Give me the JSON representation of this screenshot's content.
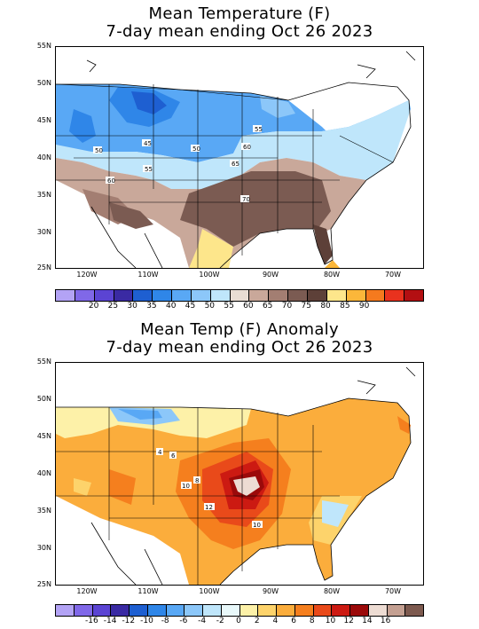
{
  "panel1": {
    "title_line1": "Mean Temperature (F)",
    "title_line2": "7-day mean ending Oct 26 2023",
    "lat_labels": [
      "55N",
      "50N",
      "45N",
      "40N",
      "35N",
      "30N",
      "25N"
    ],
    "lon_labels": [
      "120W",
      "110W",
      "100W",
      "90W",
      "80W",
      "70W"
    ],
    "contour_labels": [
      "45",
      "50",
      "50",
      "55",
      "55",
      "60",
      "60",
      "65",
      "70"
    ],
    "colorbar": {
      "colors": [
        "#b3a3f5",
        "#8068e8",
        "#5b44d3",
        "#3a2aa3",
        "#1e5fd1",
        "#2f86e8",
        "#59a8f5",
        "#8cc7f9",
        "#bfe6fb",
        "#e9ddd3",
        "#c9a89a",
        "#a37e72",
        "#7b5b52",
        "#5d4038",
        "#fde68b",
        "#fbb73a",
        "#f57a1e",
        "#e9321e",
        "#b30f12"
      ],
      "labels": [
        "20",
        "25",
        "30",
        "35",
        "40",
        "45",
        "50",
        "55",
        "60",
        "65",
        "70",
        "75",
        "80",
        "85",
        "90"
      ]
    }
  },
  "panel2": {
    "title_line1": "Mean Temp (F) Anomaly",
    "title_line2": "7-day mean ending Oct 26 2023",
    "lat_labels": [
      "55N",
      "50N",
      "45N",
      "40N",
      "35N",
      "30N",
      "25N"
    ],
    "lon_labels": [
      "120W",
      "110W",
      "100W",
      "90W",
      "80W",
      "70W"
    ],
    "contour_labels": [
      "4",
      "6",
      "10",
      "8",
      "12",
      "10"
    ],
    "colorbar": {
      "colors": [
        "#b3a3f5",
        "#8068e8",
        "#5b44d3",
        "#3a2aa3",
        "#1e5fd1",
        "#2f86e8",
        "#59a8f5",
        "#8cc7f9",
        "#bfe6fb",
        "#e8f8fa",
        "#fdf1a8",
        "#fdd36b",
        "#fbad3c",
        "#f57f1e",
        "#e94a1a",
        "#cc1a12",
        "#9b0a0a",
        "#eddcd3",
        "#c4a092",
        "#7d5a4f"
      ],
      "labels": [
        "-16",
        "-14",
        "-12",
        "-10",
        "-8",
        "-6",
        "-4",
        "-2",
        "0",
        "2",
        "4",
        "6",
        "8",
        "10",
        "12",
        "14",
        "16"
      ]
    }
  }
}
